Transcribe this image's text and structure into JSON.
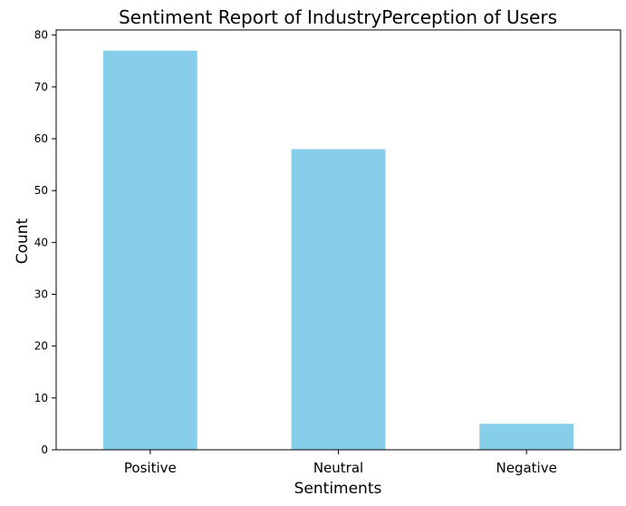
{
  "chart_data": {
    "type": "bar",
    "title": "Sentiment Report of IndustryPerception of Users",
    "xlabel": "Sentiments",
    "ylabel": "Count",
    "categories": [
      "Positive",
      "Neutral",
      "Negative"
    ],
    "values": [
      77,
      58,
      5
    ],
    "ylim": [
      0,
      81
    ],
    "yticks": [
      0,
      10,
      20,
      30,
      40,
      50,
      60,
      70,
      80
    ],
    "bar_color": "#87CEEB",
    "grid": false,
    "legend": "none"
  }
}
